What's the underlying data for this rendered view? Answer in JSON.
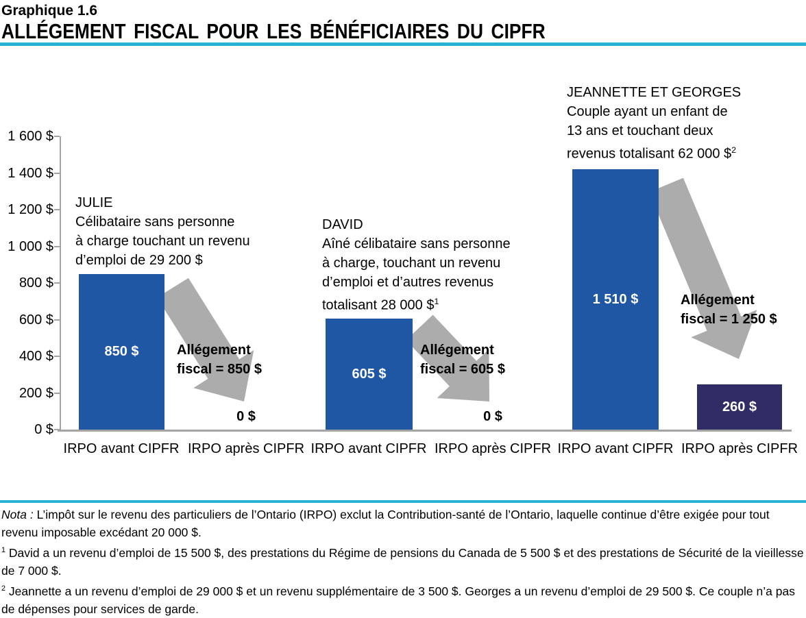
{
  "header": {
    "kicker": "Graphique 1.6",
    "title": "ALLÉGEMENT FISCAL POUR LES BÉNÉFICIAIRES DU CIPFR"
  },
  "colors": {
    "accent_cyan": "#28B2D6",
    "bar_blue": "#1F57A5",
    "bar_navy": "#2F2C66",
    "arrow_gray": "#ACACAC",
    "axis_gray": "#A3A3A3"
  },
  "chart_data": {
    "type": "bar",
    "title": "Allégement fiscal pour les bénéficiaires du CIPFR",
    "ylim": [
      0,
      1600
    ],
    "ytick_step": 200,
    "ytick_labels": [
      "0 $",
      "200 $",
      "400 $",
      "600 $",
      "800 $",
      "1 000 $",
      "1 200 $",
      "1 400 $",
      "1 600 $"
    ],
    "x_categories": [
      "IRPO avant CIPFR",
      "IRPO après CIPFR"
    ],
    "grid": false,
    "legend": null,
    "groups": [
      {
        "person": "JULIE",
        "desc_lines": [
          "Célibataire sans personne",
          "à charge touchant un revenu",
          "d’emploi de 29 200 $"
        ],
        "footnote_marker": "",
        "before_label": "IRPO avant CIPFR",
        "after_label": "IRPO après CIPFR",
        "before_value": 850,
        "before_value_label": "850 $",
        "after_value": 0,
        "after_value_label": "0 $",
        "relief_value": 850,
        "relief_lines": [
          "Allégement",
          "fiscal = 850 $"
        ]
      },
      {
        "person": "DAVID",
        "desc_lines": [
          "Aîné célibataire sans personne",
          "à charge, touchant un revenu",
          "d’emploi et d’autres revenus",
          "totalisant 28 000 $"
        ],
        "footnote_marker": "1",
        "before_label": "IRPO avant CIPFR",
        "after_label": "IRPO après CIPFR",
        "before_value": 605,
        "before_value_label": "605 $",
        "after_value": 0,
        "after_value_label": "0 $",
        "relief_value": 605,
        "relief_lines": [
          "Allégement",
          "fiscal = 605 $"
        ]
      },
      {
        "person": "JEANNETTE ET GEORGES",
        "desc_lines": [
          "Couple ayant un enfant de",
          "13 ans et touchant deux",
          "revenus totalisant 62 000 $"
        ],
        "footnote_marker": "2",
        "before_label": "IRPO avant CIPFR",
        "after_label": "IRPO après CIPFR",
        "before_value": 1510,
        "before_value_label": "1 510 $",
        "after_value": 260,
        "after_value_label": "260 $",
        "relief_value": 1250,
        "relief_lines": [
          "Allégement",
          "fiscal = 1 250 $"
        ]
      }
    ]
  },
  "footer": {
    "nota_prefix": "Nota :",
    "nota_text": "L’impôt sur le revenu des particuliers de l’Ontario (IRPO) exclut la Contribution-santé de l’Ontario, laquelle continue d’être exigée pour tout revenu imposable excédant 20 000 $.",
    "footnotes": [
      {
        "marker": "1",
        "text": "David a un revenu d’emploi de 15 500 $, des prestations du Régime de pensions du Canada de 5 500 $ et des prestations de Sécurité de la vieillesse de 7 000 $."
      },
      {
        "marker": "2",
        "text": "Jeannette a un revenu d’emploi de 29 000 $ et un revenu supplémentaire de 3 500 $. Georges a un revenu d’emploi de 29 500 $. Ce couple n’a pas de dépenses pour services de garde."
      }
    ]
  }
}
